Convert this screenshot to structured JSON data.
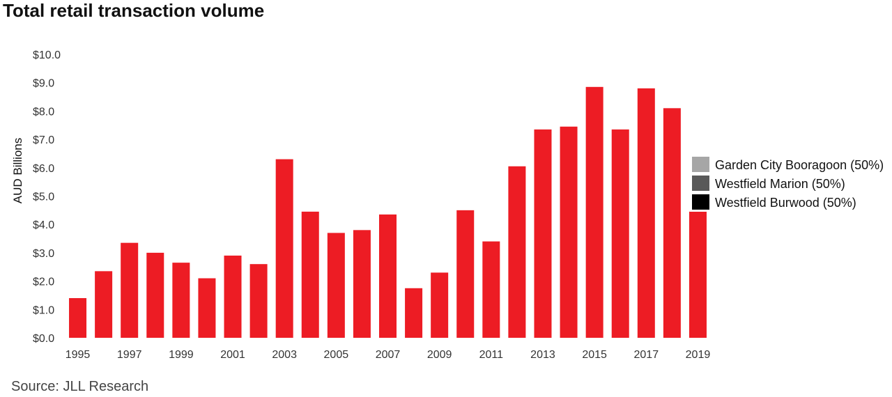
{
  "header": {
    "title": "Total retail transaction volume"
  },
  "footer": {
    "source": "Source: JLL Research"
  },
  "chart_data": {
    "type": "bar",
    "title": "Total retail transaction volume",
    "xlabel": "",
    "ylabel": "AUD Billions",
    "ylim": [
      0,
      10
    ],
    "y_ticks": [
      "$0.0",
      "$1.0",
      "$2.0",
      "$3.0",
      "$4.0",
      "$5.0",
      "$6.0",
      "$7.0",
      "$8.0",
      "$9.0",
      "$10.0"
    ],
    "categories": [
      "1995",
      "1996",
      "1997",
      "1998",
      "1999",
      "2000",
      "2001",
      "2002",
      "2003",
      "2004",
      "2005",
      "2006",
      "2007",
      "2008",
      "2009",
      "2010",
      "2011",
      "2012",
      "2013",
      "2014",
      "2015",
      "2016",
      "2017",
      "2018",
      "2019"
    ],
    "x_tick_labels": [
      "1995",
      "1997",
      "1999",
      "2001",
      "2003",
      "2005",
      "2007",
      "2009",
      "2011",
      "2013",
      "2015",
      "2017",
      "2019"
    ],
    "values": [
      1.4,
      2.35,
      3.35,
      3.0,
      2.65,
      2.1,
      2.9,
      2.6,
      6.3,
      4.45,
      3.7,
      3.8,
      4.35,
      1.75,
      2.3,
      4.5,
      3.4,
      6.05,
      7.35,
      7.45,
      8.85,
      7.35,
      8.8,
      8.1,
      4.45
    ],
    "bar_color": "#ED1C24",
    "legend": {
      "placement": "right",
      "entries": [
        {
          "label": "Garden City Booragoon (50%)",
          "color": "#A6A6A6"
        },
        {
          "label": "Westfield Marion (50%)",
          "color": "#595959"
        },
        {
          "label": "Westfield Burwood (50%)",
          "color": "#000000"
        }
      ]
    }
  }
}
